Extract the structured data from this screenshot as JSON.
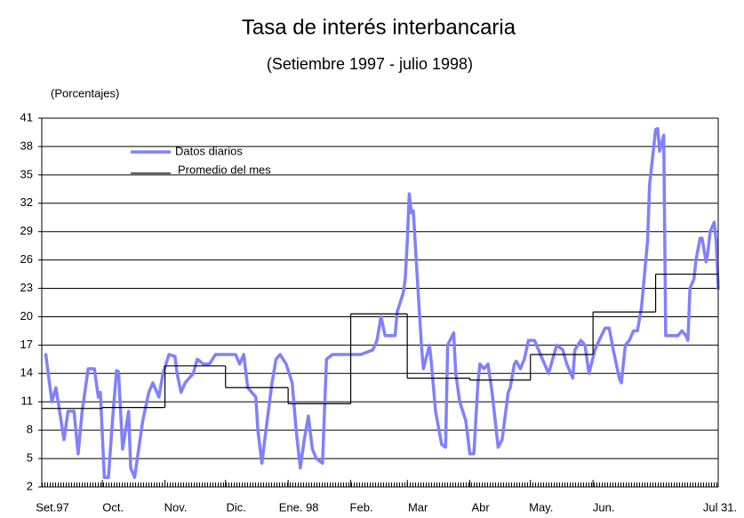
{
  "chart_data": {
    "type": "line",
    "title": "Tasa de interés interbancaria",
    "subtitle": "(Setiembre 1997 - julio 1998)",
    "y_label": "(Porcentajes)",
    "xlim": [
      0,
      335
    ],
    "xticks": [
      {
        "value": 0,
        "label": "Set.97"
      },
      {
        "value": 30,
        "label": "Oct."
      },
      {
        "value": 61,
        "label": "Nov."
      },
      {
        "value": 91,
        "label": "Dic."
      },
      {
        "value": 122,
        "label": "Ene. 98"
      },
      {
        "value": 153,
        "label": "Feb."
      },
      {
        "value": 181,
        "label": "Mar"
      },
      {
        "value": 212,
        "label": "Abr"
      },
      {
        "value": 242,
        "label": "May."
      },
      {
        "value": 273,
        "label": "Jun."
      },
      {
        "value": 335,
        "label": "Jul 31."
      }
    ],
    "ylim": [
      2,
      41
    ],
    "yticks": [
      2,
      5,
      8,
      11,
      14,
      17,
      20,
      23,
      26,
      29,
      32,
      35,
      38,
      41
    ],
    "grid": true,
    "series": [
      {
        "name": "Datos diarios",
        "color": "#8080ff",
        "x": [
          2,
          5,
          7,
          11,
          13,
          16,
          18,
          20,
          23,
          26,
          28,
          29,
          31,
          33,
          35,
          37,
          38,
          40,
          43,
          44,
          46,
          48,
          50,
          53,
          55,
          58,
          60,
          63,
          66,
          67,
          69,
          71,
          73,
          75,
          77,
          80,
          83,
          86,
          89,
          93,
          96,
          98,
          100,
          102,
          106,
          107,
          109,
          111,
          114,
          116,
          118,
          121,
          124,
          126,
          128,
          130,
          132,
          134,
          136,
          139,
          141,
          144,
          149,
          153,
          158,
          164,
          166,
          168,
          170,
          173,
          175,
          176,
          179,
          180,
          181,
          182,
          183,
          184,
          186,
          188,
          189,
          192,
          193,
          195,
          198,
          200,
          201,
          204,
          205,
          207,
          210,
          212,
          214,
          216,
          217,
          219,
          221,
          223,
          226,
          228,
          231,
          232,
          234,
          235,
          237,
          239,
          241,
          244,
          246,
          249,
          251,
          253,
          255,
          258,
          260,
          263,
          264,
          267,
          269,
          271,
          274,
          276,
          279,
          281,
          283,
          286,
          287,
          289,
          291,
          293,
          295,
          297,
          300,
          301,
          304,
          305,
          306,
          308,
          309,
          312,
          315,
          317,
          319,
          320,
          321,
          323,
          324,
          326,
          327,
          329,
          330,
          331,
          333,
          334,
          335
        ],
        "values": [
          16,
          11,
          12.5,
          7,
          10,
          10,
          5.5,
          10,
          14.5,
          14.5,
          11.5,
          12,
          3,
          3,
          9,
          14.3,
          14.2,
          6,
          10,
          4,
          3,
          6,
          9,
          12,
          13,
          11.5,
          14,
          16,
          15.8,
          14,
          12,
          13,
          13.5,
          14,
          15.5,
          15,
          15,
          16,
          16,
          16,
          16,
          15,
          16,
          12.5,
          11.5,
          8,
          4.5,
          8,
          13,
          15.5,
          16,
          15,
          13,
          8,
          4,
          7,
          9.5,
          6,
          5,
          4.5,
          15.5,
          16,
          16,
          16,
          16,
          16.5,
          17.5,
          20,
          18,
          18,
          18,
          20.5,
          22.5,
          24,
          28,
          33,
          31,
          31.2,
          24,
          17,
          14.5,
          17,
          15,
          10,
          6.5,
          6.2,
          17,
          18.3,
          14,
          11,
          9,
          5.5,
          5.5,
          13,
          15,
          14.5,
          15,
          12,
          6.2,
          7,
          12,
          12.5,
          15,
          15.3,
          14.5,
          15.5,
          17.5,
          17.5,
          16.5,
          15,
          14,
          15.5,
          17,
          16.5,
          15,
          13.5,
          16.5,
          17.5,
          17,
          14,
          16.5,
          17.5,
          18.8,
          18.8,
          16.5,
          13.5,
          13,
          17,
          17.5,
          18.5,
          18.5,
          21,
          28,
          34,
          39.8,
          39.9,
          37.5,
          39.2,
          18,
          18,
          18,
          18.5,
          18,
          17.5,
          23,
          24,
          26,
          28.3,
          28.3,
          25.8,
          27,
          29,
          30,
          28,
          23
        ]
      },
      {
        "name": "Promedio del mes",
        "color": "#000000",
        "step": true,
        "x": [
          0,
          30,
          61,
          91,
          122,
          153,
          181,
          212,
          242,
          273,
          304
        ],
        "values": [
          10.3,
          10.4,
          14.8,
          12.5,
          10.8,
          20.3,
          13.5,
          13.3,
          16,
          20.5,
          24.5
        ]
      }
    ]
  }
}
